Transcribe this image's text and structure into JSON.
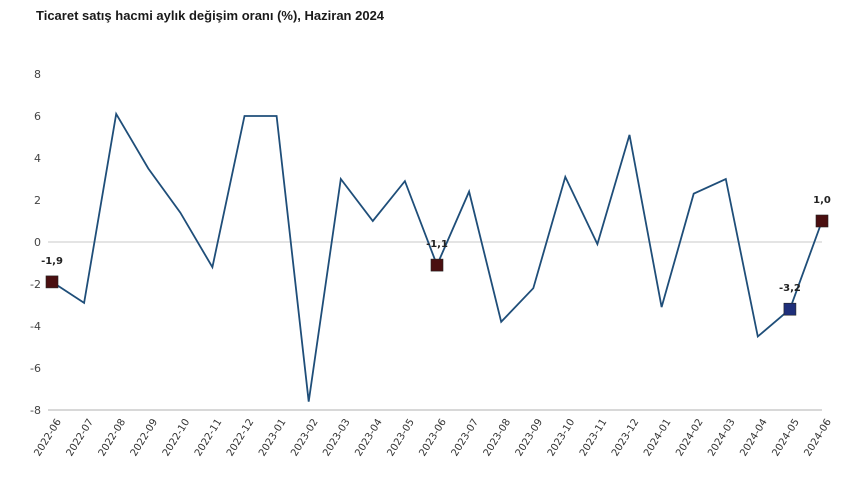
{
  "chart_data": {
    "type": "line",
    "title": "Ticaret satış hacmi aylık değişim oranı (%), Haziran 2024",
    "xlabel": "",
    "ylabel": "",
    "x": [
      "2022-06",
      "2022-07",
      "2022-08",
      "2022-09",
      "2022-10",
      "2022-11",
      "2022-12",
      "2023-01",
      "2023-02",
      "2023-03",
      "2023-04",
      "2023-05",
      "2023-06",
      "2023-07",
      "2023-08",
      "2023-09",
      "2023-10",
      "2023-11",
      "2023-12",
      "2024-01",
      "2024-02",
      "2024-03",
      "2024-04",
      "2024-05",
      "2024-06"
    ],
    "series": [
      {
        "values": [
          -1.9,
          -2.9,
          6.1,
          3.5,
          1.4,
          -1.2,
          6.0,
          6.0,
          -7.6,
          3.0,
          1.0,
          2.9,
          -1.1,
          2.4,
          -3.8,
          -2.2,
          3.1,
          -0.1,
          5.1,
          -3.1,
          2.3,
          3.0,
          -4.5,
          -3.2,
          1.0
        ]
      }
    ],
    "ylim": [
      -8,
      8
    ],
    "yticks": [
      8,
      6,
      4,
      2,
      0,
      -2,
      -4,
      -6,
      -8
    ],
    "ytick_labels": [
      "8",
      "6",
      "4",
      "2",
      "0",
      "-2",
      "-4",
      "-6",
      "-8"
    ],
    "grid": false,
    "line_color": "#1f4e79",
    "marker_color_dark": "#4a0f10",
    "marker_color_blue": "#1f2f7a",
    "highlighted_points": [
      {
        "index": 0,
        "label": "-1,9",
        "color": "#4a0f10"
      },
      {
        "index": 12,
        "label": "-1,1",
        "color": "#4a0f10"
      },
      {
        "index": 23,
        "label": "-3,2",
        "color": "#1f2f7a"
      },
      {
        "index": 24,
        "label": "1,0",
        "color": "#4a0f10"
      }
    ]
  }
}
